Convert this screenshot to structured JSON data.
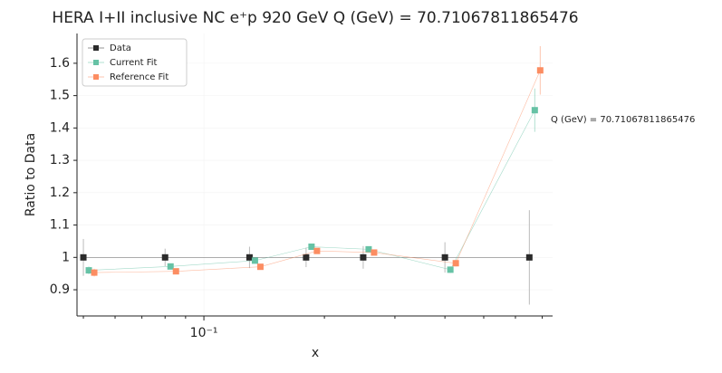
{
  "chart_data": {
    "type": "errorbar_line",
    "title": "HERA I+II inclusive NC e⁺p 920 GeV Q (GeV) = 70.71067811865476",
    "annotation": "Q (GeV) = 70.71067811865476",
    "x_label": "x",
    "y_label": "Ratio to Data",
    "x_scale": "log",
    "grid": true,
    "legend": "upper-left",
    "x": [
      0.05,
      0.08,
      0.13,
      0.18,
      0.25,
      0.4,
      0.65
    ],
    "series": [
      {
        "name": "Data",
        "color": "#2b2b2b",
        "values": [
          1.0,
          1.0,
          1.0,
          1.0,
          1.0,
          1.0,
          1.0
        ],
        "errors": [
          0.057,
          0.027,
          0.033,
          0.03,
          0.035,
          0.047,
          0.146
        ]
      },
      {
        "name": "Current Fit",
        "color": "#66c2a5",
        "values": [
          0.96,
          0.972,
          0.99,
          1.033,
          1.025,
          0.962,
          1.455
        ],
        "errors": [
          0.012,
          0.008,
          0.008,
          0.008,
          0.008,
          0.01,
          0.067
        ]
      },
      {
        "name": "Reference Fit",
        "color": "#fc8d62",
        "values": [
          0.953,
          0.957,
          0.971,
          1.02,
          1.015,
          0.982,
          1.578
        ],
        "errors": [
          0.012,
          0.008,
          0.008,
          0.008,
          0.008,
          0.01,
          0.075
        ]
      }
    ],
    "xlim": [
      0.0482,
      0.743
    ],
    "ylim": [
      0.819,
      1.692
    ],
    "xticks": [
      {
        "value": 0.1,
        "label": "10⁻¹"
      }
    ],
    "xminorticks": [
      0.05,
      0.06,
      0.07,
      0.08,
      0.09,
      0.2,
      0.3,
      0.4,
      0.5,
      0.6,
      0.7
    ],
    "yticks": [
      0.9,
      1.0,
      1.1,
      1.2,
      1.3,
      1.4,
      1.5,
      1.6
    ]
  }
}
